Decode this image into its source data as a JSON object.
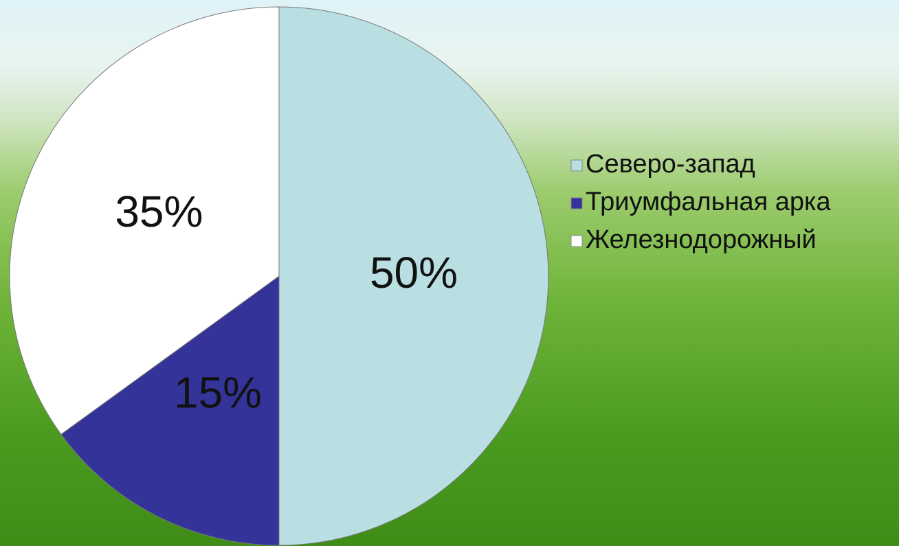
{
  "chart_data": {
    "type": "pie",
    "categories": [
      "Северо-запад",
      "Триумфальная арка",
      "Железнодорожный"
    ],
    "values": [
      50,
      15,
      35
    ],
    "value_labels": [
      "50%",
      "15%",
      "35%"
    ],
    "colors": [
      "#b9dfe3",
      "#333399",
      "#ffffff"
    ],
    "legend": "right"
  }
}
